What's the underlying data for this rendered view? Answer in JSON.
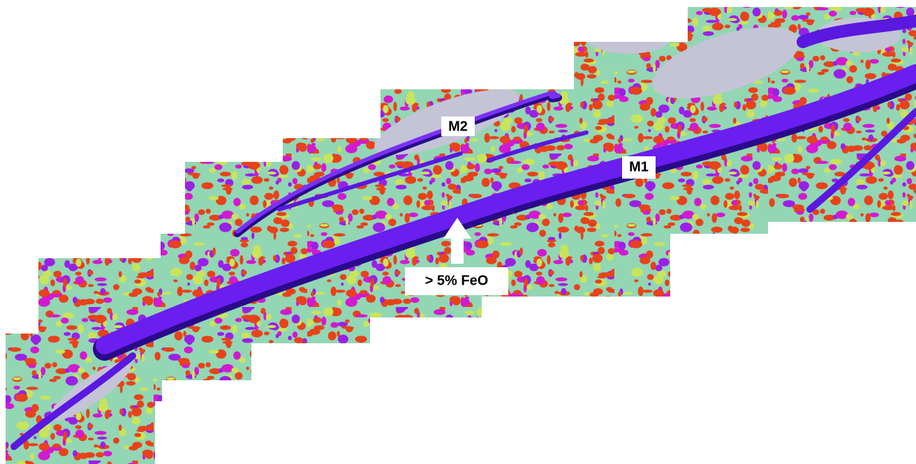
{
  "labels": {
    "m2": "M2",
    "m1": "M1",
    "feo": "> 5% FeO"
  }
}
